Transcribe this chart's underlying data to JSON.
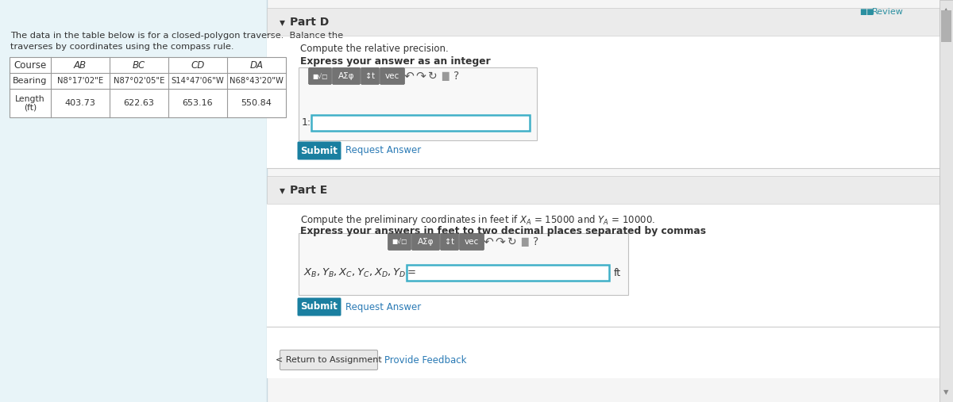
{
  "bg_color": "#e8f4f8",
  "white": "#ffffff",
  "light_gray": "#f2f2f2",
  "mid_gray": "#e0e0e0",
  "dark_gray": "#808080",
  "teal": "#2a8fa0",
  "teal_btn": "#1a7fa0",
  "text_dark": "#333333",
  "text_blue": "#2a7ab5",
  "text_light": "#555555",
  "intro_text_line1": "The data in the table below is for a closed-polygon traverse.  Balance the",
  "intro_text_line2": "traverses by coordinates using the compass rule.",
  "table_headers": [
    "Course",
    "AB",
    "BC",
    "CD",
    "DA"
  ],
  "table_row1_label": "Bearing",
  "table_row1_data": [
    "N8°17'02\"E",
    "N87°02'05\"E",
    "S14°47'06\"W",
    "N68°43'20\"W"
  ],
  "table_row2_label_line1": "Length",
  "table_row2_label_line2": "(ft)",
  "table_row2_data": [
    "403.73",
    "622.63",
    "653.16",
    "550.84"
  ],
  "part_d_title": "Part D",
  "part_d_label1": "Compute the relative precision.",
  "part_d_label2": "Express your answer as an integer",
  "part_d_prefix": "1:",
  "part_e_title": "Part E",
  "part_e_label2": "Express your answers in feet to two decimal places separated by commas",
  "part_e_suffix": "ft",
  "submit_label": "Submit",
  "request_answer": "Request Answer",
  "return_label": "< Return to Assignment",
  "feedback_label": "Provide Feedback",
  "review_label": "Review",
  "separator_color": "#cccccc",
  "input_border": "#40b0c8",
  "scrollbar_color": "#999999",
  "panel_border": "#c8d8e0",
  "header_bg": "#ebebeb",
  "right_bg": "#f5f5f5"
}
